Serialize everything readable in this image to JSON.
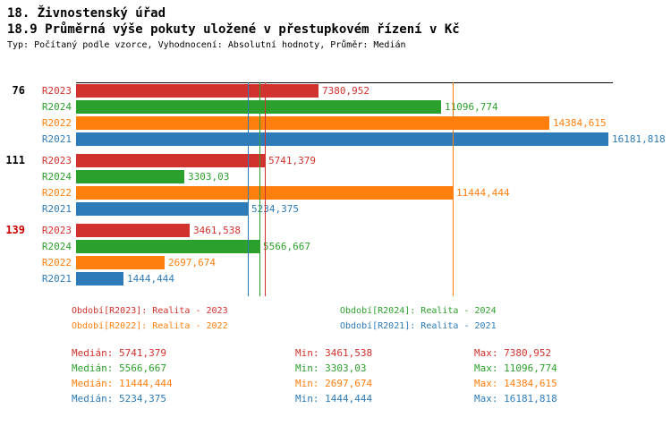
{
  "header": {
    "title": "18. Živnostenský úřad",
    "subtitle": "18.9 Průměrná výše pokuty uložené v přestupkovém řízení v Kč",
    "meta": "Typ: Počítaný podle vzorce, Vyhodnocení: Absolutní hodnoty, Průměr: Medián"
  },
  "colors": {
    "R2023": "#d2322d",
    "R2024": "#2ca02c",
    "R2022": "#ff7f0e",
    "R2021": "#2d7bb9",
    "group_label_default": "#000000",
    "group_label_highlight": "#cc0000",
    "axis": "#000000"
  },
  "chart_data": {
    "type": "bar",
    "orientation": "horizontal",
    "title": "18.9 Průměrná výše pokuty uložené v přestupkovém řízení v Kč",
    "xlabel": "",
    "ylabel": "",
    "x_max": 16181.818,
    "grid": false,
    "series_order": [
      "R2023",
      "R2024",
      "R2022",
      "R2021"
    ],
    "groups": [
      {
        "label": "76",
        "label_color": "#000000",
        "bars": [
          {
            "series": "R2023",
            "value": 7380.952,
            "display": "7380,952"
          },
          {
            "series": "R2024",
            "value": 11096.774,
            "display": "11096,774"
          },
          {
            "series": "R2022",
            "value": 14384.615,
            "display": "14384,615"
          },
          {
            "series": "R2021",
            "value": 16181.818,
            "display": "16181,818"
          }
        ]
      },
      {
        "label": "111",
        "label_color": "#000000",
        "bars": [
          {
            "series": "R2023",
            "value": 5741.379,
            "display": "5741,379"
          },
          {
            "series": "R2024",
            "value": 3303.03,
            "display": "3303,03"
          },
          {
            "series": "R2022",
            "value": 11444.444,
            "display": "11444,444"
          },
          {
            "series": "R2021",
            "value": 5234.375,
            "display": "5234,375"
          }
        ]
      },
      {
        "label": "139",
        "label_color": "#cc0000",
        "bars": [
          {
            "series": "R2023",
            "value": 3461.538,
            "display": "3461,538"
          },
          {
            "series": "R2024",
            "value": 5566.667,
            "display": "5566,667"
          },
          {
            "series": "R2022",
            "value": 2697.674,
            "display": "2697,674"
          },
          {
            "series": "R2021",
            "value": 1444.444,
            "display": "1444,444"
          }
        ]
      }
    ],
    "median_lines": [
      {
        "series": "R2021",
        "value": 5234.375
      },
      {
        "series": "R2024",
        "value": 5566.667
      },
      {
        "series": "R2023",
        "value": 5741.379
      },
      {
        "series": "R2022",
        "value": 11444.444
      }
    ]
  },
  "legend": [
    {
      "series": "R2023",
      "label": "Období[R2023]: Realita - 2023"
    },
    {
      "series": "R2024",
      "label": "Období[R2024]: Realita - 2024"
    },
    {
      "series": "R2022",
      "label": "Období[R2022]: Realita - 2022"
    },
    {
      "series": "R2021",
      "label": "Období[R2021]: Realita - 2021"
    }
  ],
  "stats": [
    {
      "series": "R2023",
      "median": "Medián: 5741,379",
      "min": "Min: 3461,538",
      "max": "Max: 7380,952"
    },
    {
      "series": "R2024",
      "median": "Medián: 5566,667",
      "min": "Min: 3303,03",
      "max": "Max: 11096,774"
    },
    {
      "series": "R2022",
      "median": "Medián: 11444,444",
      "min": "Min: 2697,674",
      "max": "Max: 14384,615"
    },
    {
      "series": "R2021",
      "median": "Medián: 5234,375",
      "min": "Min: 1444,444",
      "max": "Max: 16181,818"
    }
  ]
}
